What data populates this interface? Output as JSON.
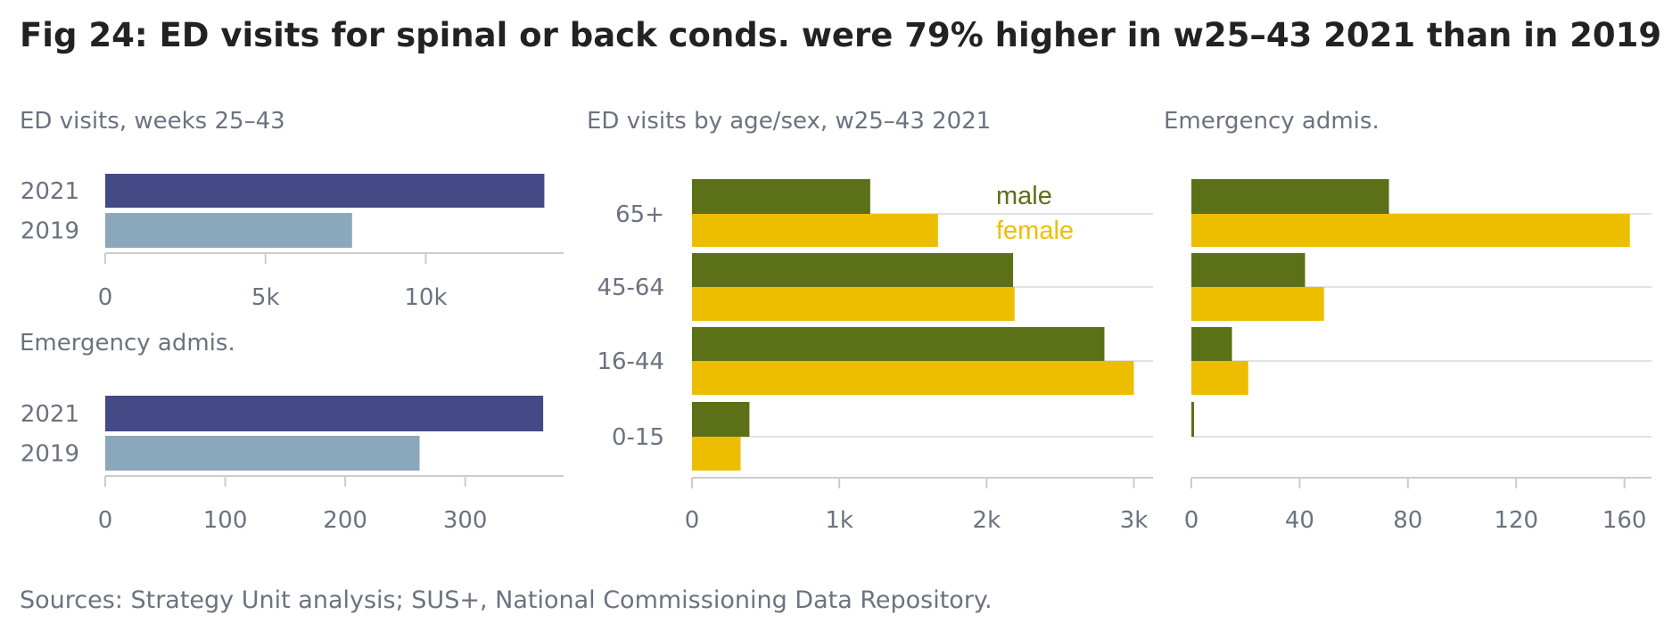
{
  "title": "Fig 24: ED visits for spinal or back conds. were 79% higher in w25–43 2021 than in 2019",
  "source": "Sources: Strategy Unit analysis; SUS+, National Commissioning Data Repository.",
  "colors": {
    "year_2021": "#434a86",
    "year_2019": "#8ba7bb",
    "male": "#5b7017",
    "female": "#edbe00",
    "axis": "#cccccc",
    "grid": "#d9d9d9",
    "text_muted": "#6b7280"
  },
  "chart_data": [
    {
      "id": "ed-visits-year",
      "type": "bar",
      "orientation": "horizontal",
      "title": "ED visits, weeks 25–43",
      "categories": [
        "2021",
        "2019"
      ],
      "values": [
        13700,
        7700
      ],
      "xlim": [
        0,
        14300
      ],
      "ticks": [
        0,
        5000,
        10000
      ],
      "tick_labels": [
        "0",
        "5k",
        "10k"
      ]
    },
    {
      "id": "emergency-admis-year",
      "type": "bar",
      "orientation": "horizontal",
      "title": "Emergency admis.",
      "categories": [
        "2021",
        "2019"
      ],
      "values": [
        365,
        262
      ],
      "xlim": [
        0,
        382
      ],
      "ticks": [
        0,
        100,
        200,
        300
      ],
      "tick_labels": [
        "0",
        "100",
        "200",
        "300"
      ]
    },
    {
      "id": "ed-visits-age-sex",
      "type": "bar",
      "orientation": "horizontal",
      "title": "ED visits by age/sex, w25–43 2021",
      "categories": [
        "65+",
        "45-64",
        "16-44",
        "0-15"
      ],
      "series": [
        {
          "name": "male",
          "values": [
            1210,
            2180,
            2800,
            390
          ]
        },
        {
          "name": "female",
          "values": [
            1670,
            2190,
            3000,
            330
          ]
        }
      ],
      "xlim": [
        0,
        3130
      ],
      "ticks": [
        0,
        1000,
        2000,
        3000
      ],
      "tick_labels": [
        "0",
        "1k",
        "2k",
        "3k"
      ],
      "legend": "top-right"
    },
    {
      "id": "emergency-admis-age-sex",
      "type": "bar",
      "orientation": "horizontal",
      "title": "Emergency admis.",
      "categories": [
        "65+",
        "45-64",
        "16-44",
        "0-15"
      ],
      "series": [
        {
          "name": "male",
          "values": [
            73,
            42,
            15,
            1
          ]
        },
        {
          "name": "female",
          "values": [
            162,
            49,
            21,
            0
          ]
        }
      ],
      "xlim": [
        0,
        170
      ],
      "ticks": [
        0,
        40,
        80,
        120,
        160
      ],
      "tick_labels": [
        "0",
        "40",
        "80",
        "120",
        "160"
      ]
    }
  ]
}
